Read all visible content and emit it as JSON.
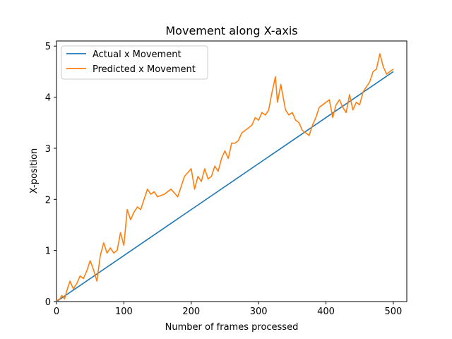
{
  "chart_data": {
    "type": "line",
    "title": "Movement along X-axis",
    "xlabel": "Number of frames processed",
    "ylabel": "X-position",
    "xlim": [
      0,
      520
    ],
    "ylim": [
      0,
      5.1
    ],
    "xticks": [
      "0",
      "100",
      "200",
      "300",
      "400",
      "500"
    ],
    "yticks": [
      "0",
      "1",
      "2",
      "3",
      "4",
      "5"
    ],
    "legend": "top-left",
    "grid": false,
    "series": [
      {
        "name": "Actual x Movement",
        "color": "#1f77b4",
        "x": [
          0,
          500
        ],
        "y": [
          0,
          4.5
        ]
      },
      {
        "name": "Predicted x Movement",
        "color": "#ff7f0e",
        "x": [
          0,
          5,
          8,
          12,
          15,
          20,
          25,
          30,
          35,
          40,
          45,
          50,
          55,
          60,
          65,
          70,
          75,
          80,
          85,
          90,
          95,
          100,
          105,
          110,
          115,
          120,
          125,
          130,
          135,
          140,
          145,
          150,
          160,
          170,
          180,
          190,
          200,
          205,
          210,
          215,
          220,
          225,
          230,
          235,
          240,
          245,
          250,
          255,
          260,
          265,
          270,
          275,
          280,
          285,
          290,
          295,
          300,
          305,
          310,
          315,
          320,
          325,
          328,
          333,
          340,
          345,
          350,
          355,
          360,
          365,
          370,
          375,
          380,
          385,
          390,
          395,
          400,
          405,
          410,
          415,
          420,
          425,
          430,
          435,
          440,
          445,
          450,
          455,
          460,
          465,
          470,
          475,
          480,
          485,
          490,
          495,
          500
        ],
        "y": [
          0.02,
          0.05,
          0.12,
          0.05,
          0.2,
          0.4,
          0.25,
          0.35,
          0.5,
          0.45,
          0.6,
          0.8,
          0.62,
          0.4,
          0.9,
          1.15,
          0.95,
          1.05,
          0.95,
          1.0,
          1.35,
          1.1,
          1.8,
          1.6,
          1.75,
          1.85,
          1.8,
          2.0,
          2.2,
          2.1,
          2.15,
          2.05,
          2.1,
          2.2,
          2.05,
          2.45,
          2.6,
          2.2,
          2.45,
          2.35,
          2.6,
          2.4,
          2.45,
          2.65,
          2.55,
          2.8,
          2.95,
          2.8,
          3.1,
          3.1,
          3.15,
          3.3,
          3.35,
          3.4,
          3.45,
          3.6,
          3.55,
          3.7,
          3.65,
          3.75,
          4.1,
          4.4,
          3.9,
          4.25,
          3.75,
          3.65,
          3.7,
          3.55,
          3.5,
          3.35,
          3.3,
          3.25,
          3.45,
          3.6,
          3.8,
          3.85,
          3.9,
          3.95,
          3.6,
          3.85,
          3.95,
          3.8,
          3.7,
          4.05,
          3.75,
          3.9,
          3.85,
          4.1,
          4.2,
          4.3,
          4.5,
          4.55,
          4.85,
          4.6,
          4.45,
          4.5,
          4.55
        ]
      }
    ]
  }
}
